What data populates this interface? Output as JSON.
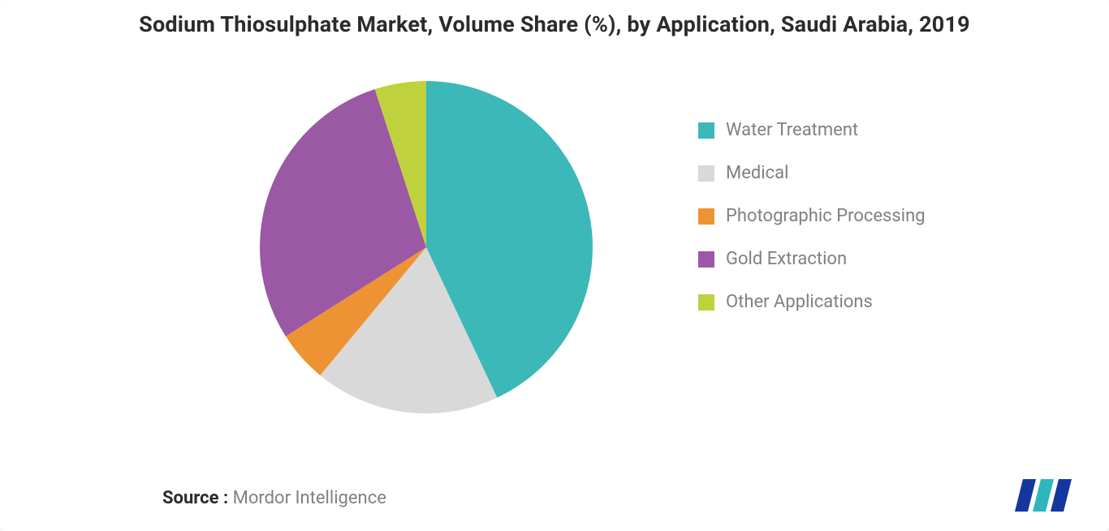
{
  "chart": {
    "type": "pie",
    "title": "Sodium Thiosulphate Market, Volume Share (%), by Application, Saudi Arabia, 2019",
    "title_fontsize": 27,
    "title_color": "#2b2b2b",
    "background_color": "#ffffff",
    "pie_radius": 205,
    "start_angle_deg": -90,
    "slices": [
      {
        "label": "Water Treatment",
        "value": 43,
        "color": "#3cb8b8"
      },
      {
        "label": "Medical",
        "value": 18,
        "color": "#d9d9d9"
      },
      {
        "label": "Photographic Processing",
        "value": 5,
        "color": "#ee9333"
      },
      {
        "label": "Gold Extraction",
        "value": 29,
        "color": "#9b58a4"
      },
      {
        "label": "Other Applications",
        "value": 5,
        "color": "#bfd23e"
      }
    ],
    "legend": {
      "position": "right",
      "fontsize": 22,
      "text_color": "#808080",
      "swatch_size": 20
    }
  },
  "source": {
    "label": "Source :",
    "name": "Mordor Intelligence",
    "fontsize": 22,
    "label_color": "#2b2b2b",
    "text_color": "#808080"
  },
  "logo": {
    "bar1_color": "#14369e",
    "bar2_color": "#2fb6bd",
    "bar3_color": "#14369e"
  }
}
